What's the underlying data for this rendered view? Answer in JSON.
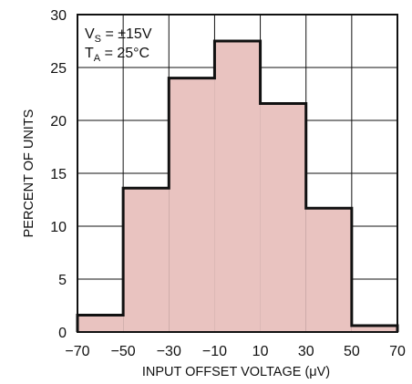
{
  "chart_data": {
    "type": "bar",
    "subtype": "histogram",
    "xlabel": "INPUT OFFSET VOLTAGE (μV)",
    "ylabel": "PERCENT OF UNITS",
    "xlim": [
      -70,
      70
    ],
    "ylim": [
      0,
      30
    ],
    "x_ticks": [
      "−70",
      "−50",
      "−30",
      "−10",
      "10",
      "30",
      "50",
      "70"
    ],
    "y_ticks": [
      "0",
      "5",
      "10",
      "15",
      "20",
      "25",
      "30"
    ],
    "grid": true,
    "bins": [
      {
        "from": -70,
        "to": -50,
        "value": 1.6
      },
      {
        "from": -50,
        "to": -30,
        "value": 13.6
      },
      {
        "from": -30,
        "to": -10,
        "value": 24.0
      },
      {
        "from": -10,
        "to": 10,
        "value": 27.5
      },
      {
        "from": 10,
        "to": 30,
        "value": 21.6
      },
      {
        "from": 30,
        "to": 50,
        "value": 11.7
      },
      {
        "from": 50,
        "to": 70,
        "value": 0.6
      }
    ],
    "annotations": {
      "line1_main": "V",
      "line1_sub": "S",
      "line1_rest": " = ±15V",
      "line2_main": "T",
      "line2_sub": "A",
      "line2_rest": " = 25°C"
    },
    "legend_position": "top-left",
    "colors": {
      "fill": "#e9c3c0",
      "outline": "#111111",
      "grid": "#111111"
    }
  }
}
